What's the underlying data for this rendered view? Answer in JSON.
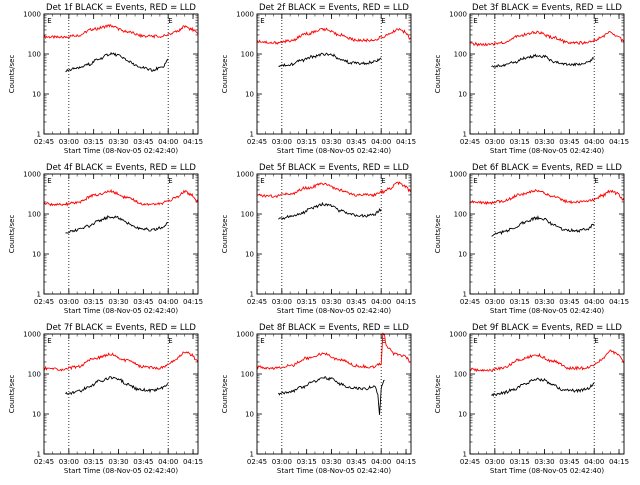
{
  "figure": {
    "common_ylabel": "Counts/sec",
    "common_xlabel": "Start Time (08-Nov-05 02:42:40)",
    "series_colors": {
      "events": "#000000",
      "lld": "#ff0000"
    }
  },
  "chart_data": [
    {
      "type": "line",
      "title": "Det 1f BLACK = Events, RED = LLD",
      "xlabel": "Start Time (08-Nov-05 02:42:40)",
      "ylabel": "Counts/sec",
      "y_scale": "log",
      "ylim": [
        1,
        1000
      ],
      "y_ticks": [
        "1",
        "10",
        "100",
        "1000"
      ],
      "x_ticks": [
        "02:45",
        "03:00",
        "03:15",
        "03:30",
        "03:45",
        "04:00",
        "04:15"
      ],
      "x_tick_minutes": [
        165,
        180,
        195,
        210,
        225,
        240,
        255
      ],
      "xlim_minutes": [
        165,
        258
      ],
      "vlines_minutes": [
        180,
        240
      ],
      "marks": [
        {
          "text": "E",
          "x_minute": 167
        },
        {
          "text": "E",
          "x_minute": 240
        }
      ],
      "series": [
        {
          "color": "#ff0000",
          "x_minutes": [
            165,
            175,
            185,
            195,
            205,
            215,
            225,
            235,
            240,
            245,
            250,
            254,
            258
          ],
          "values": [
            270,
            260,
            290,
            420,
            510,
            360,
            280,
            275,
            300,
            360,
            490,
            420,
            320
          ]
        },
        {
          "color": "#000000",
          "x_minutes": [
            178,
            185,
            192,
            198,
            205,
            210,
            215,
            222,
            230,
            236,
            240
          ],
          "values": [
            38,
            44,
            55,
            75,
            100,
            95,
            70,
            48,
            40,
            45,
            70
          ]
        }
      ]
    },
    {
      "type": "line",
      "title": "Det 2f BLACK = Events, RED = LLD",
      "xlabel": "Start Time (08-Nov-05 02:42:40)",
      "ylabel": "Counts/sec",
      "y_scale": "log",
      "ylim": [
        1,
        1000
      ],
      "y_ticks": [
        "1",
        "10",
        "100",
        "1000"
      ],
      "x_ticks": [
        "02:45",
        "03:00",
        "03:15",
        "03:30",
        "03:45",
        "04:00",
        "04:15"
      ],
      "x_tick_minutes": [
        165,
        180,
        195,
        210,
        225,
        240,
        255
      ],
      "xlim_minutes": [
        165,
        258
      ],
      "vlines_minutes": [
        180,
        240
      ],
      "marks": [
        {
          "text": "E",
          "x_minute": 167
        },
        {
          "text": "E",
          "x_minute": 240
        }
      ],
      "series": [
        {
          "color": "#ff0000",
          "x_minutes": [
            165,
            175,
            185,
            195,
            205,
            215,
            225,
            235,
            240,
            245,
            250,
            254,
            258
          ],
          "values": [
            210,
            190,
            210,
            320,
            420,
            300,
            220,
            220,
            260,
            320,
            420,
            360,
            240
          ]
        },
        {
          "color": "#000000",
          "x_minutes": [
            178,
            185,
            192,
            198,
            205,
            210,
            215,
            222,
            230,
            236,
            240
          ],
          "values": [
            50,
            55,
            68,
            85,
            100,
            95,
            75,
            60,
            58,
            65,
            80
          ]
        }
      ]
    },
    {
      "type": "line",
      "title": "Det 3f BLACK = Events, RED = LLD",
      "xlabel": "Start Time (08-Nov-05 02:42:40)",
      "ylabel": "Counts/sec",
      "y_scale": "log",
      "ylim": [
        1,
        1000
      ],
      "y_ticks": [
        "1",
        "10",
        "100",
        "1000"
      ],
      "x_ticks": [
        "02:45",
        "03:00",
        "03:15",
        "03:30",
        "03:45",
        "04:00",
        "04:15"
      ],
      "x_tick_minutes": [
        165,
        180,
        195,
        210,
        225,
        240,
        255
      ],
      "xlim_minutes": [
        165,
        258
      ],
      "vlines_minutes": [
        180,
        240
      ],
      "marks": [
        {
          "text": "E",
          "x_minute": 167
        },
        {
          "text": "E",
          "x_minute": 240
        }
      ],
      "series": [
        {
          "color": "#ff0000",
          "x_minutes": [
            165,
            175,
            185,
            195,
            205,
            215,
            225,
            235,
            240,
            245,
            250,
            254,
            258
          ],
          "values": [
            180,
            170,
            190,
            290,
            350,
            260,
            190,
            190,
            220,
            280,
            350,
            290,
            200
          ]
        },
        {
          "color": "#000000",
          "x_minutes": [
            178,
            185,
            192,
            198,
            205,
            210,
            215,
            222,
            230,
            236,
            240
          ],
          "values": [
            48,
            52,
            62,
            78,
            90,
            85,
            65,
            55,
            55,
            62,
            80
          ]
        }
      ]
    },
    {
      "type": "line",
      "title": "Det 4f BLACK = Events, RED = LLD",
      "xlabel": "Start Time (08-Nov-05 02:42:40)",
      "ylabel": "Counts/sec",
      "y_scale": "log",
      "ylim": [
        1,
        1000
      ],
      "y_ticks": [
        "1",
        "10",
        "100",
        "1000"
      ],
      "x_ticks": [
        "02:45",
        "03:00",
        "03:15",
        "03:30",
        "03:45",
        "04:00",
        "04:15"
      ],
      "x_tick_minutes": [
        165,
        180,
        195,
        210,
        225,
        240,
        255
      ],
      "xlim_minutes": [
        165,
        258
      ],
      "vlines_minutes": [
        180,
        240
      ],
      "marks": [
        {
          "text": "E",
          "x_minute": 167
        },
        {
          "text": "E",
          "x_minute": 240
        }
      ],
      "series": [
        {
          "color": "#ff0000",
          "x_minutes": [
            165,
            175,
            185,
            195,
            205,
            215,
            225,
            235,
            240,
            245,
            250,
            254,
            258
          ],
          "values": [
            180,
            170,
            190,
            290,
            370,
            260,
            180,
            180,
            210,
            270,
            370,
            300,
            200
          ]
        },
        {
          "color": "#000000",
          "x_minutes": [
            178,
            185,
            192,
            198,
            205,
            210,
            215,
            222,
            230,
            236,
            240
          ],
          "values": [
            35,
            40,
            50,
            68,
            85,
            80,
            60,
            45,
            40,
            45,
            60
          ]
        }
      ]
    },
    {
      "type": "line",
      "title": "Det 5f BLACK = Events, RED = LLD",
      "xlabel": "Start Time (08-Nov-05 02:42:40)",
      "ylabel": "Counts/sec",
      "y_scale": "log",
      "ylim": [
        1,
        1000
      ],
      "y_ticks": [
        "1",
        "10",
        "100",
        "1000"
      ],
      "x_ticks": [
        "02:45",
        "03:00",
        "03:15",
        "03:30",
        "03:45",
        "04:00",
        "04:15"
      ],
      "x_tick_minutes": [
        165,
        180,
        195,
        210,
        225,
        240,
        255
      ],
      "xlim_minutes": [
        165,
        258
      ],
      "vlines_minutes": [
        180,
        240
      ],
      "marks": [
        {
          "text": "E",
          "x_minute": 167
        },
        {
          "text": "E",
          "x_minute": 240
        }
      ],
      "series": [
        {
          "color": "#ff0000",
          "x_minutes": [
            165,
            175,
            185,
            195,
            205,
            215,
            225,
            235,
            240,
            245,
            250,
            254,
            258
          ],
          "values": [
            290,
            280,
            320,
            450,
            560,
            400,
            300,
            300,
            350,
            420,
            600,
            500,
            360
          ]
        },
        {
          "color": "#000000",
          "x_minutes": [
            178,
            185,
            192,
            198,
            205,
            210,
            215,
            222,
            230,
            236,
            240
          ],
          "values": [
            75,
            85,
            105,
            140,
            175,
            160,
            120,
            95,
            90,
            100,
            130
          ]
        }
      ]
    },
    {
      "type": "line",
      "title": "Det 6f BLACK = Events, RED = LLD",
      "xlabel": "Start Time (08-Nov-05 02:42:40)",
      "ylabel": "Counts/sec",
      "y_scale": "log",
      "ylim": [
        1,
        1000
      ],
      "y_ticks": [
        "1",
        "10",
        "100",
        "1000"
      ],
      "x_ticks": [
        "02:45",
        "03:00",
        "03:15",
        "03:30",
        "03:45",
        "04:00",
        "04:15"
      ],
      "x_tick_minutes": [
        165,
        180,
        195,
        210,
        225,
        240,
        255
      ],
      "xlim_minutes": [
        165,
        258
      ],
      "vlines_minutes": [
        180,
        240
      ],
      "marks": [
        {
          "text": "E",
          "x_minute": 167
        },
        {
          "text": "E",
          "x_minute": 240
        }
      ],
      "series": [
        {
          "color": "#ff0000",
          "x_minutes": [
            165,
            175,
            185,
            195,
            205,
            215,
            225,
            235,
            240,
            245,
            250,
            254,
            258
          ],
          "values": [
            200,
            190,
            210,
            300,
            380,
            280,
            200,
            200,
            230,
            290,
            380,
            320,
            220
          ]
        },
        {
          "color": "#000000",
          "x_minutes": [
            178,
            185,
            192,
            198,
            205,
            210,
            215,
            222,
            230,
            236,
            240
          ],
          "values": [
            30,
            35,
            45,
            62,
            80,
            75,
            55,
            40,
            38,
            42,
            55
          ]
        }
      ]
    },
    {
      "type": "line",
      "title": "Det 7f BLACK = Events, RED = LLD",
      "xlabel": "Start Time (08-Nov-05 02:42:40)",
      "ylabel": "Counts/sec",
      "y_scale": "log",
      "ylim": [
        1,
        1000
      ],
      "y_ticks": [
        "1",
        "10",
        "100",
        "1000"
      ],
      "x_ticks": [
        "02:45",
        "03:00",
        "03:15",
        "03:30",
        "03:45",
        "04:00",
        "04:15"
      ],
      "x_tick_minutes": [
        165,
        180,
        195,
        210,
        225,
        240,
        255
      ],
      "xlim_minutes": [
        165,
        258
      ],
      "vlines_minutes": [
        180,
        240
      ],
      "marks": [
        {
          "text": "E",
          "x_minute": 167
        },
        {
          "text": "E",
          "x_minute": 240
        }
      ],
      "series": [
        {
          "color": "#ff0000",
          "x_minutes": [
            165,
            175,
            185,
            195,
            205,
            215,
            225,
            235,
            240,
            245,
            250,
            254,
            258
          ],
          "values": [
            140,
            130,
            150,
            240,
            310,
            220,
            150,
            140,
            170,
            240,
            360,
            300,
            200
          ]
        },
        {
          "color": "#000000",
          "x_minutes": [
            178,
            185,
            192,
            198,
            205,
            210,
            215,
            222,
            230,
            236,
            240
          ],
          "values": [
            32,
            36,
            46,
            65,
            80,
            75,
            55,
            42,
            38,
            44,
            58
          ]
        }
      ]
    },
    {
      "type": "line",
      "title": "Det 8f BLACK = Events, RED = LLD",
      "xlabel": "Start Time (08-Nov-05 02:42:40)",
      "ylabel": "Counts/sec",
      "y_scale": "log",
      "ylim": [
        1,
        1000
      ],
      "y_ticks": [
        "1",
        "10",
        "100",
        "1000"
      ],
      "x_ticks": [
        "02:45",
        "03:00",
        "03:15",
        "03:30",
        "03:45",
        "04:00",
        "04:15"
      ],
      "x_tick_minutes": [
        165,
        180,
        195,
        210,
        225,
        240,
        255
      ],
      "xlim_minutes": [
        165,
        258
      ],
      "vlines_minutes": [
        180,
        240
      ],
      "marks": [
        {
          "text": "E",
          "x_minute": 167
        },
        {
          "text": "E",
          "x_minute": 240
        }
      ],
      "series": [
        {
          "color": "#ff0000",
          "x_minutes": [
            165,
            175,
            185,
            195,
            205,
            215,
            225,
            235,
            240,
            241,
            242,
            243,
            248,
            254,
            258
          ],
          "values": [
            150,
            140,
            160,
            250,
            320,
            230,
            160,
            150,
            180,
            1000,
            1000,
            500,
            320,
            280,
            200
          ]
        },
        {
          "color": "#000000",
          "x_minutes": [
            178,
            185,
            192,
            198,
            205,
            210,
            215,
            222,
            230,
            236,
            238,
            239,
            240,
            241,
            242
          ],
          "values": [
            32,
            36,
            46,
            62,
            80,
            75,
            56,
            45,
            42,
            50,
            30,
            10,
            45,
            60,
            70
          ]
        }
      ]
    },
    {
      "type": "line",
      "title": "Det 9f BLACK = Events, RED = LLD",
      "xlabel": "Start Time (08-Nov-05 02:42:40)",
      "ylabel": "Counts/sec",
      "y_scale": "log",
      "ylim": [
        1,
        1000
      ],
      "y_ticks": [
        "1",
        "10",
        "100",
        "1000"
      ],
      "x_ticks": [
        "02:45",
        "03:00",
        "03:15",
        "03:30",
        "03:45",
        "04:00",
        "04:15"
      ],
      "x_tick_minutes": [
        165,
        180,
        195,
        210,
        225,
        240,
        255
      ],
      "xlim_minutes": [
        165,
        258
      ],
      "vlines_minutes": [
        180,
        240
      ],
      "marks": [
        {
          "text": "E",
          "x_minute": 167
        },
        {
          "text": "E",
          "x_minute": 240
        }
      ],
      "series": [
        {
          "color": "#ff0000",
          "x_minutes": [
            165,
            175,
            185,
            195,
            205,
            215,
            225,
            235,
            240,
            245,
            250,
            254,
            258
          ],
          "values": [
            130,
            120,
            140,
            230,
            300,
            210,
            140,
            140,
            170,
            240,
            380,
            320,
            210
          ]
        },
        {
          "color": "#000000",
          "x_minutes": [
            178,
            185,
            192,
            198,
            205,
            210,
            215,
            222,
            230,
            236,
            240
          ],
          "values": [
            30,
            34,
            42,
            58,
            75,
            70,
            52,
            40,
            38,
            42,
            58
          ]
        }
      ]
    }
  ]
}
